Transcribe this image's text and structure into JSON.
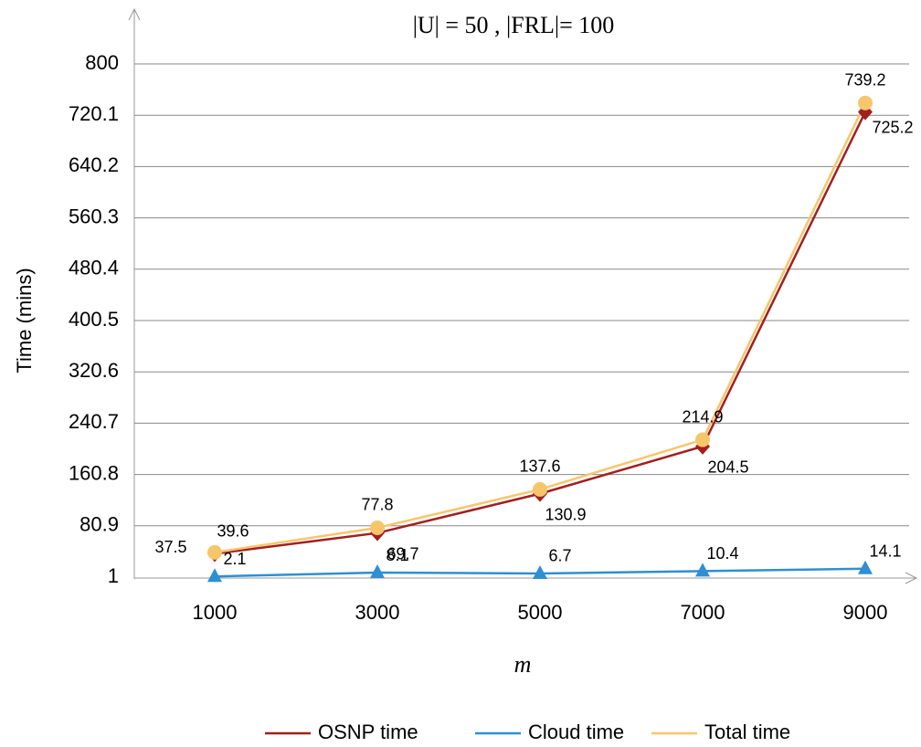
{
  "chart_data": {
    "type": "line",
    "title": "|U| = 50 ,  |FRL|= 100",
    "x_label": "m",
    "y_label": "Time (mins)",
    "categories": [
      "1000",
      "3000",
      "5000",
      "7000",
      "9000"
    ],
    "ylim": [
      1,
      800
    ],
    "yticks": [
      1,
      80.9,
      160.8,
      240.7,
      320.6,
      400.5,
      480.4,
      560.3,
      640.2,
      720.1,
      800
    ],
    "grid": true,
    "legend": "bottom",
    "series": [
      {
        "name": "OSNP time",
        "color": "#a21f1f",
        "marker": "diamond",
        "values": [
          37.5,
          69.7,
          130.9,
          204.5,
          725.2
        ]
      },
      {
        "name": "Cloud time",
        "color": "#2f8fd2",
        "marker": "triangle",
        "values": [
          2.1,
          8.1,
          6.7,
          10.4,
          14.1
        ]
      },
      {
        "name": "Total time",
        "color": "#f7c66b",
        "marker": "circle",
        "values": [
          39.6,
          77.8,
          137.6,
          214.9,
          739.2
        ]
      }
    ]
  }
}
